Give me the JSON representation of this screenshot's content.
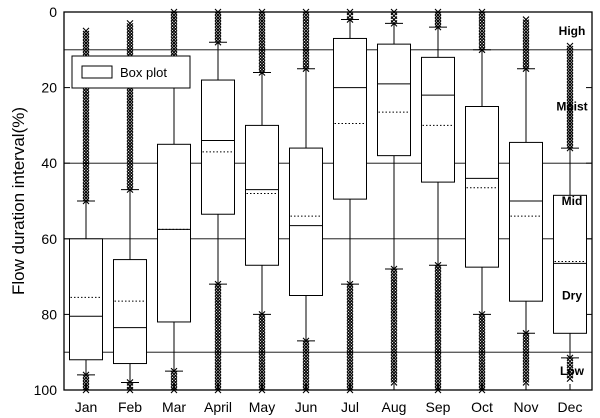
{
  "chart_data": {
    "type": "box",
    "title": "",
    "xlabel": "",
    "ylabel": "Flow duration interval(%)",
    "ylim": [
      0,
      100
    ],
    "y_inverted": true,
    "yticks": [
      0,
      20,
      40,
      60,
      80,
      100
    ],
    "grid": false,
    "legend": {
      "position": "top-left",
      "entries": [
        "Box plot"
      ]
    },
    "categories": [
      "Jan",
      "Feb",
      "Mar",
      "April",
      "May",
      "Jun",
      "Jul",
      "Aug",
      "Sep",
      "Oct",
      "Nov",
      "Dec"
    ],
    "zone_boundaries": [
      10,
      40,
      60,
      90
    ],
    "zones": [
      {
        "label": "High",
        "y": 5
      },
      {
        "label": "Moist",
        "y": 25
      },
      {
        "label": "Mid",
        "y": 50
      },
      {
        "label": "Dry",
        "y": 75
      },
      {
        "label": "Low",
        "y": 95
      }
    ],
    "boxes": [
      {
        "q1": 60,
        "median": 80.5,
        "q3": 92,
        "mean": 75.5,
        "whisker_low": 50,
        "whisker_high": 96,
        "outliers_top": [
          5,
          50
        ],
        "outliers_bottom": [
          96,
          100
        ]
      },
      {
        "q1": 65.5,
        "median": 83.5,
        "q3": 93,
        "mean": 76.5,
        "whisker_low": 47,
        "whisker_high": 98,
        "outliers_top": [
          3,
          47
        ],
        "outliers_bottom": [
          98,
          100
        ]
      },
      {
        "q1": 35,
        "median": 57.5,
        "q3": 82,
        "mean": 57.5,
        "whisker_low": 18,
        "whisker_high": 95,
        "outliers_top": [
          0,
          18
        ],
        "outliers_bottom": [
          95,
          100
        ]
      },
      {
        "q1": 18,
        "median": 34,
        "q3": 53.5,
        "mean": 37,
        "whisker_low": 8,
        "whisker_high": 72,
        "outliers_top": [
          0,
          8
        ],
        "outliers_bottom": [
          72,
          100
        ]
      },
      {
        "q1": 30,
        "median": 47,
        "q3": 67,
        "mean": 48,
        "whisker_low": 16,
        "whisker_high": 80,
        "outliers_top": [
          0,
          16
        ],
        "outliers_bottom": [
          80,
          100
        ]
      },
      {
        "q1": 36,
        "median": 56.5,
        "q3": 75,
        "mean": 54,
        "whisker_low": 15,
        "whisker_high": 87,
        "outliers_top": [
          0,
          15
        ],
        "outliers_bottom": [
          87,
          100
        ]
      },
      {
        "q1": 7,
        "median": 20,
        "q3": 49.5,
        "mean": 29.5,
        "whisker_low": 2,
        "whisker_high": 72,
        "outliers_top": [
          0,
          2
        ],
        "outliers_bottom": [
          72,
          100
        ]
      },
      {
        "q1": 8.5,
        "median": 19,
        "q3": 38,
        "mean": 26.5,
        "whisker_low": 3,
        "whisker_high": 68,
        "outliers_top": [
          0,
          3
        ],
        "outliers_bottom": [
          68,
          98
        ]
      },
      {
        "q1": 12,
        "median": 22,
        "q3": 45,
        "mean": 30,
        "whisker_low": 4,
        "whisker_high": 67,
        "outliers_top": [
          0,
          4
        ],
        "outliers_bottom": [
          67,
          100
        ]
      },
      {
        "q1": 25,
        "median": 44,
        "q3": 67.5,
        "mean": 46.5,
        "whisker_low": 10,
        "whisker_high": 80,
        "outliers_top": [
          0,
          10
        ],
        "outliers_bottom": [
          80,
          100
        ]
      },
      {
        "q1": 34.5,
        "median": 50,
        "q3": 76.5,
        "mean": 54,
        "whisker_low": 15,
        "whisker_high": 85,
        "outliers_top": [
          2,
          15
        ],
        "outliers_bottom": [
          85,
          98
        ]
      },
      {
        "q1": 48.5,
        "median": 66.5,
        "q3": 85,
        "mean": 66,
        "whisker_low": 36,
        "whisker_high": 91.5,
        "outliers_top": [
          9,
          36
        ],
        "outliers_bottom": [
          91.5,
          97
        ]
      }
    ]
  }
}
